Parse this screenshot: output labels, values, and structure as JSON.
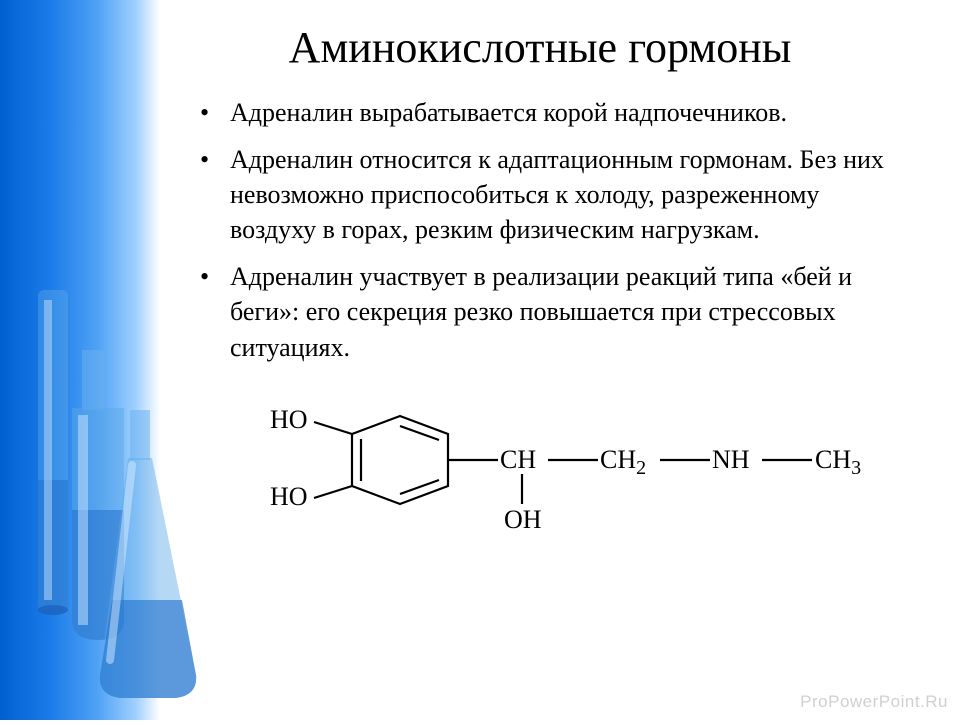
{
  "title": "Аминокислотные гормоны",
  "title_fontsize": 44,
  "bullets": [
    "Адреналин вырабатывается корой надпочечников.",
    "Адреналин относится к адаптационным гормонам. Без них невозможно приспособиться к холоду, разреженному воздуху в горах, резким физическим нагрузкам.",
    "Адреналин участвует в реализации реакций типа «бей и беги»: его секреция резко повышается при стрессовых ситуациях."
  ],
  "bullet_fontsize": 26,
  "formula": {
    "groups": {
      "ho_top": "HO",
      "ho_bottom": "HO",
      "ch": "CH",
      "ch2": "CH₂",
      "nh": "NH",
      "ch3": "CH₃",
      "oh_below": "OH"
    },
    "font_family": "Times New Roman",
    "fontsize": 26,
    "stroke_color": "#000000",
    "stroke_width": 2.2
  },
  "sidebar": {
    "gradient_start": "#0060d0",
    "gradient_end": "#ffffff"
  },
  "flasks": {
    "glass_color": "#78b8f0",
    "liquid_color": "#3a8ce0",
    "highlight_color": "#e0f0ff"
  },
  "watermark": "ProPowerPoint.Ru",
  "watermark_color": "#d0d0d0"
}
